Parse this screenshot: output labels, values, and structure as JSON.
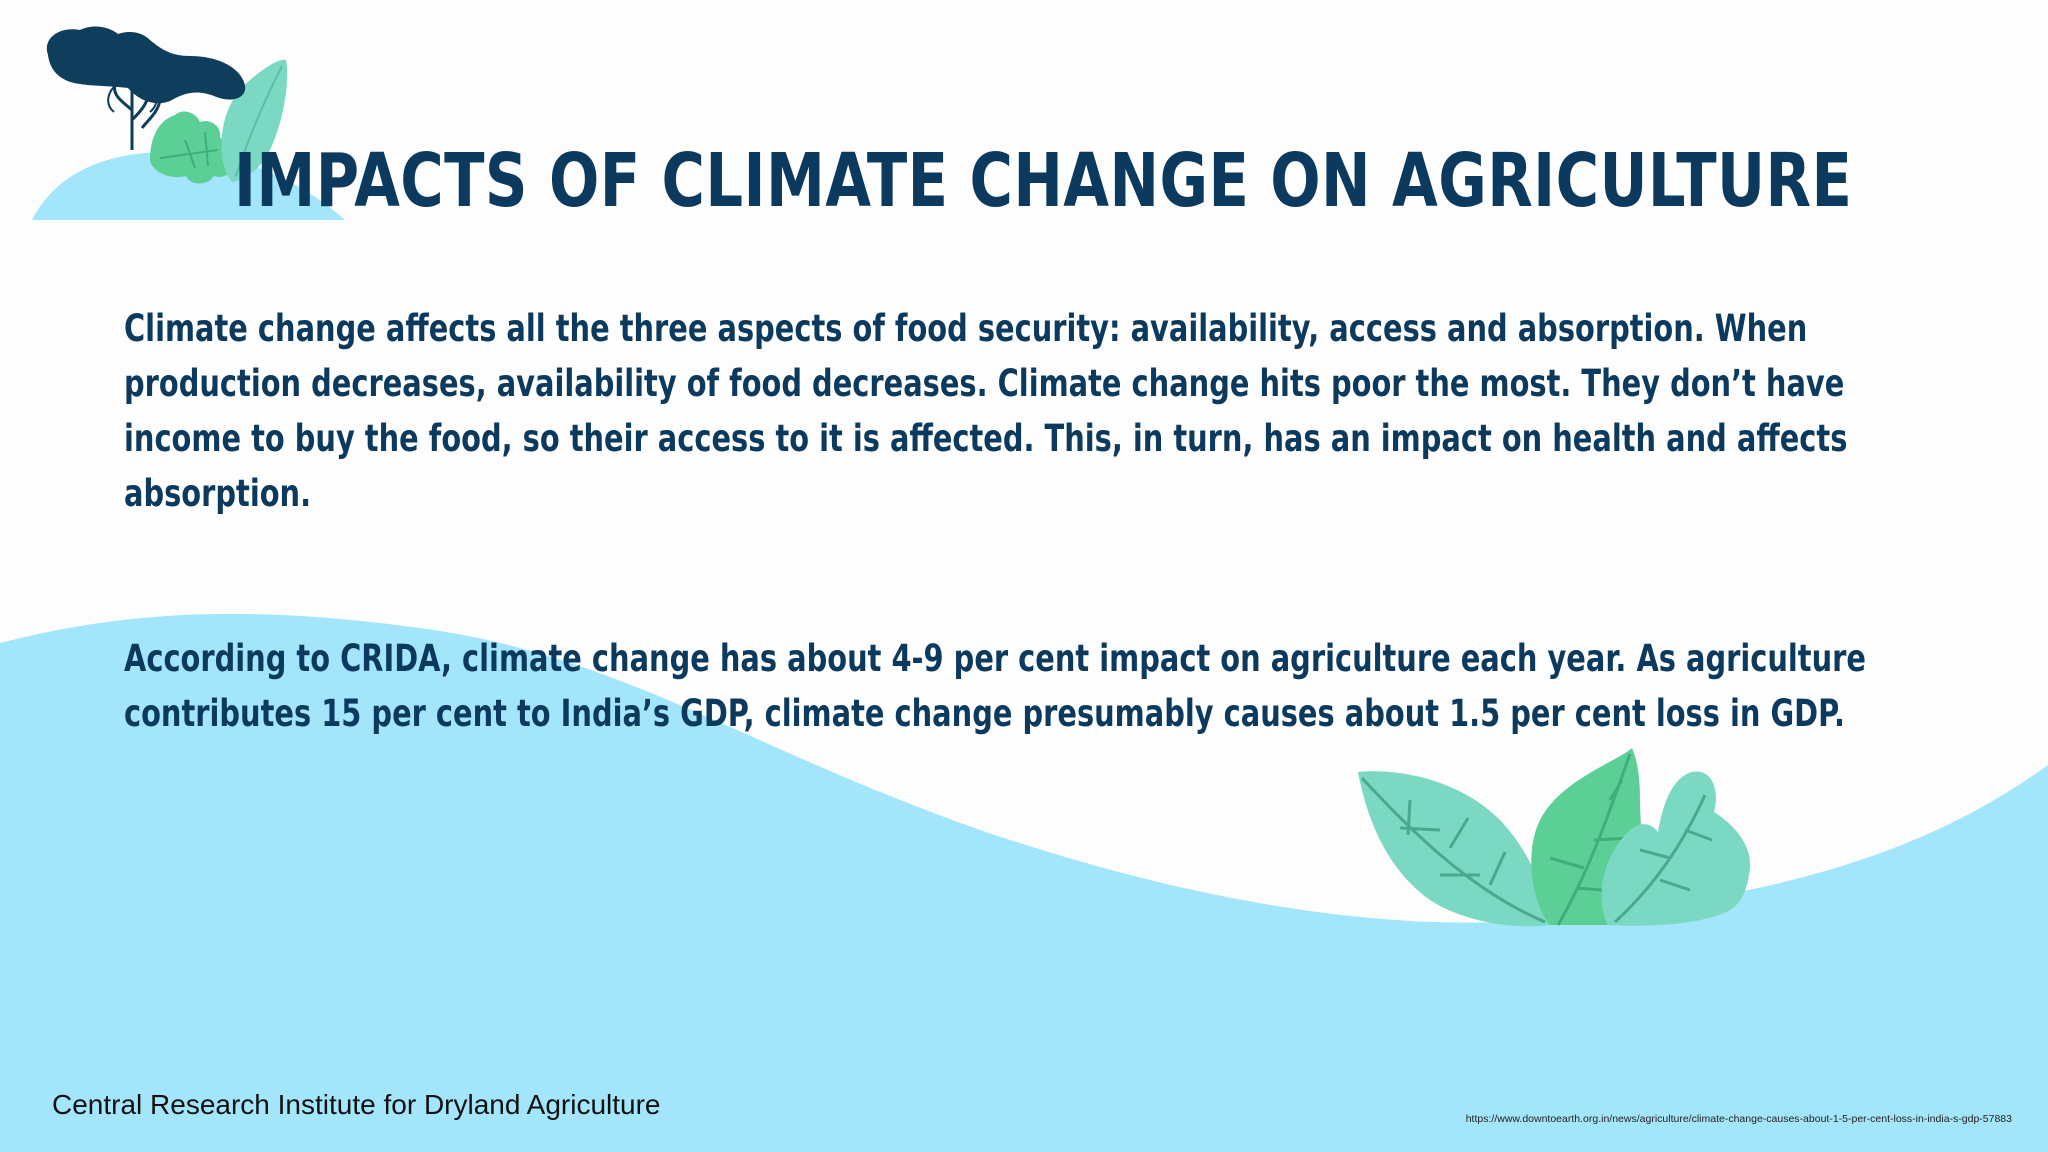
{
  "slide": {
    "title": "IMPACTS OF CLIMATE CHANGE ON AGRICULTURE",
    "paragraphs": [
      "Climate change affects all the three aspects of food security: availability, access and absorption. When production decreases, availability of food decreases. Climate change hits poor the most. They don’t have income to buy the food, so their access to it is affected. This, in turn, has an impact on health and affects absorption.",
      "According to CRIDA, climate change has about 4-9 per cent impact on agriculture each year. As agriculture contributes 15 per cent to India’s GDP, climate change presumably causes about 1.5 per cent loss in GDP."
    ],
    "organization": "Central Research Institute for Dryland Agriculture",
    "source_url": "https://www.downtoearth.org.in/news/agriculture/climate-change-causes-about-1-5-per-cent-loss-in-india-s-gdp-57883"
  },
  "colors": {
    "title_text": "#0b3a5e",
    "body_text": "#0b3a5e",
    "background": "#fdfdfd",
    "wave": "#a3e6fb",
    "leaf_light": "#7bd8c3",
    "leaf_green": "#5ccf97",
    "cloud_navy": "#0f3d5c"
  },
  "decorations": {
    "top_left": "tree-and-leaves-illustration",
    "bottom_right": "leaves-illustration"
  }
}
